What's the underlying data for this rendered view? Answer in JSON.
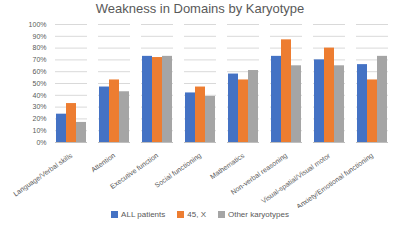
{
  "chart_data": {
    "type": "bar",
    "title": "Weakness in Domains by Karyotype",
    "categories": [
      "Language/Verbal skills",
      "Attention",
      "Executive function",
      "Social functioning",
      "Mathematics",
      "Non-verbal reasoning",
      "Visual-spatial/Visual motor",
      "Anxiety/Emotional functioning"
    ],
    "series": [
      {
        "name": "ALL patients",
        "color": "#4472c4",
        "values": [
          24,
          47,
          73,
          42,
          58,
          73,
          70,
          66
        ]
      },
      {
        "name": "45, X",
        "color": "#ed7d31",
        "values": [
          33,
          53,
          72,
          47,
          53,
          87,
          80,
          53
        ]
      },
      {
        "name": "Other karyotypes",
        "color": "#a5a5a5",
        "values": [
          17,
          43,
          73,
          39,
          61,
          65,
          65,
          73
        ]
      }
    ],
    "ylim": [
      0,
      100
    ],
    "yticks": [
      {
        "value": 0,
        "label": "0%"
      },
      {
        "value": 10,
        "label": "10%"
      },
      {
        "value": 20,
        "label": "20%"
      },
      {
        "value": 30,
        "label": "30%"
      },
      {
        "value": 40,
        "label": "40%"
      },
      {
        "value": 50,
        "label": "50%"
      },
      {
        "value": 60,
        "label": "60%"
      },
      {
        "value": 70,
        "label": "70%"
      },
      {
        "value": 80,
        "label": "80%"
      },
      {
        "value": 90,
        "label": "90%"
      },
      {
        "value": 100,
        "label": "100%"
      }
    ],
    "grid": true,
    "legend": "bottom"
  }
}
